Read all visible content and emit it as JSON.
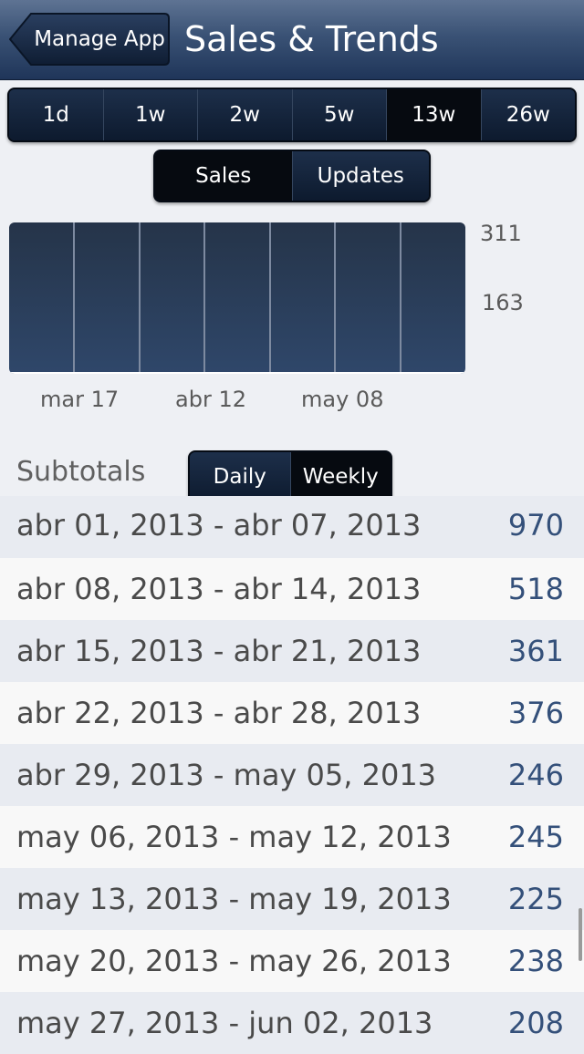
{
  "nav": {
    "back_label": "Manage App",
    "title": "Sales & Trends"
  },
  "ranges": [
    {
      "label": "1d",
      "selected": false
    },
    {
      "label": "1w",
      "selected": false
    },
    {
      "label": "2w",
      "selected": false
    },
    {
      "label": "5w",
      "selected": false
    },
    {
      "label": "13w",
      "selected": true
    },
    {
      "label": "26w",
      "selected": false
    }
  ],
  "mode": [
    {
      "label": "Sales",
      "selected": true
    },
    {
      "label": "Updates",
      "selected": false
    }
  ],
  "chart_data": {
    "type": "line",
    "title": "",
    "ylim": [
      0,
      311
    ],
    "y_ticks": [
      "311",
      "163"
    ],
    "x_ticks": [
      "mar 17",
      "abr 12",
      "may 08"
    ],
    "series": [
      {
        "name": "Sales",
        "values": [
          0,
          0,
          0,
          0,
          0,
          0,
          0,
          0,
          0,
          0,
          0,
          0,
          0,
          0,
          0,
          0,
          0,
          0,
          0,
          0,
          0,
          0,
          0,
          0,
          0,
          0,
          0,
          0,
          0,
          0,
          0,
          0,
          0,
          0,
          0,
          0,
          0,
          0,
          0,
          0,
          0,
          0,
          0,
          0,
          0,
          0,
          0,
          0,
          0,
          0,
          0,
          0,
          0,
          0,
          0,
          0,
          0,
          0,
          0,
          0,
          0,
          0,
          0,
          0,
          0,
          0,
          0,
          0,
          0,
          0,
          0,
          0,
          0,
          0,
          0,
          0,
          0,
          0,
          0,
          0,
          0,
          0,
          0,
          0,
          0,
          0,
          0,
          0,
          0,
          0,
          0,
          0,
          0,
          0,
          0,
          0,
          0,
          0,
          0,
          0,
          0,
          0,
          0,
          0,
          0,
          0,
          0,
          0,
          0,
          0,
          0,
          0,
          0,
          0,
          0,
          0,
          0,
          0,
          0,
          0,
          0,
          0,
          0,
          0,
          0,
          0,
          0,
          0,
          0,
          0,
          0,
          0,
          0,
          0,
          0,
          0,
          0,
          0,
          0,
          0,
          0,
          0,
          0,
          0,
          0,
          0,
          0,
          0,
          0,
          0,
          0,
          0,
          0,
          0,
          0,
          0,
          0,
          0,
          0,
          0,
          0,
          0,
          0,
          0,
          0,
          0,
          0,
          0,
          0,
          0,
          0,
          0,
          0,
          0,
          0,
          0,
          0,
          0,
          0,
          0,
          0,
          0,
          0,
          0,
          0,
          0,
          0,
          0,
          0,
          0,
          0,
          0
        ]
      }
    ]
  },
  "subtotals": {
    "label": "Subtotals",
    "toggle": [
      {
        "label": "Daily",
        "selected": false
      },
      {
        "label": "Weekly",
        "selected": true
      }
    ],
    "rows": [
      {
        "period": "abr 01, 2013 - abr 07, 2013",
        "count": "970"
      },
      {
        "period": "abr 08, 2013 - abr 14, 2013",
        "count": "518"
      },
      {
        "period": "abr 15, 2013 - abr 21, 2013",
        "count": "361"
      },
      {
        "period": "abr 22, 2013 - abr 28, 2013",
        "count": "376"
      },
      {
        "period": "abr 29, 2013 - may 05, 2013",
        "count": "246"
      },
      {
        "period": "may 06, 2013 - may 12, 2013",
        "count": "245"
      },
      {
        "period": "may 13, 2013 - may 19, 2013",
        "count": "225"
      },
      {
        "period": "may 20, 2013 - may 26, 2013",
        "count": "238"
      },
      {
        "period": "may 27, 2013 - jun 02, 2013",
        "count": "208"
      }
    ]
  }
}
